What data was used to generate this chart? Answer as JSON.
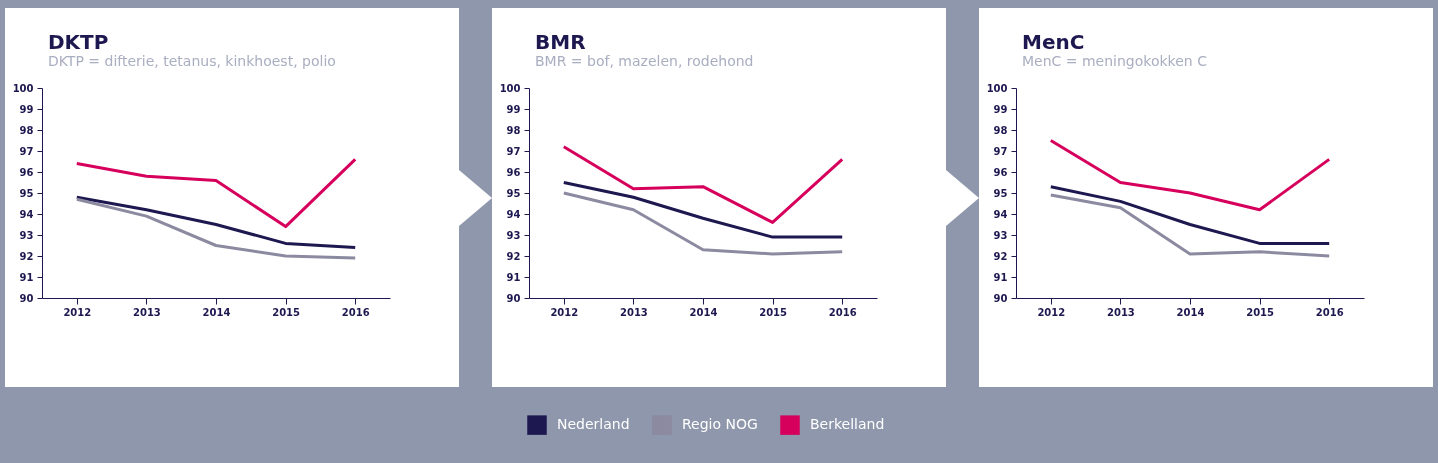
{
  "chart_data": [
    {
      "type": "line",
      "title": "DKTP",
      "subtitle": "DKTP = difterie, tetanus, kinkhoest, polio",
      "categories": [
        "2012",
        "2013",
        "2014",
        "2015",
        "2016"
      ],
      "ylim": [
        90,
        100
      ],
      "yticks": [
        90,
        91,
        92,
        93,
        94,
        95,
        96,
        97,
        98,
        99,
        100
      ],
      "line_style": "solid",
      "series": [
        {
          "color": "#1e1850",
          "values": [
            94.8,
            94.2,
            93.5,
            92.6,
            92.4
          ]
        },
        {
          "color": "#8b8aa0",
          "values": [
            94.7,
            93.9,
            92.5,
            92.0,
            91.9
          ]
        },
        {
          "color": "#d6005c",
          "values": [
            96.4,
            95.8,
            95.6,
            93.4,
            96.6
          ]
        }
      ]
    },
    {
      "type": "line",
      "title": "BMR",
      "subtitle": "BMR = bof, mazelen, rodehond",
      "categories": [
        "2012",
        "2013",
        "2014",
        "2015",
        "2016"
      ],
      "ylim": [
        90,
        100
      ],
      "yticks": [
        90,
        91,
        92,
        93,
        94,
        95,
        96,
        97,
        98,
        99,
        100
      ],
      "line_style": "solid",
      "legend": "bottom",
      "series": [
        {
          "name": "Nederland",
          "color": "#1e1850",
          "values": [
            95.5,
            94.8,
            93.8,
            92.9,
            92.9
          ]
        },
        {
          "name": "Regio NOG",
          "color": "#8b8aa0",
          "values": [
            95.0,
            94.2,
            92.3,
            92.1,
            92.2
          ]
        },
        {
          "name": "Berkelland",
          "color": "#d6005c",
          "values": [
            97.2,
            95.2,
            95.3,
            93.6,
            96.6
          ]
        }
      ]
    },
    {
      "type": "line",
      "title": "MenC",
      "subtitle": "MenC = meningokokken C",
      "categories": [
        "2012",
        "2013",
        "2014",
        "2015",
        "2016"
      ],
      "ylim": [
        90,
        100
      ],
      "yticks": [
        90,
        91,
        92,
        93,
        94,
        95,
        96,
        97,
        98,
        99,
        100
      ],
      "line_style": "solid",
      "series": [
        {
          "color": "#1e1850",
          "values": [
            95.3,
            94.6,
            93.5,
            92.6,
            92.6
          ]
        },
        {
          "color": "#8b8aa0",
          "values": [
            94.9,
            94.3,
            92.1,
            92.2,
            92.0
          ]
        },
        {
          "color": "#d6005c",
          "values": [
            97.5,
            95.5,
            95.0,
            94.2,
            96.6
          ]
        }
      ]
    }
  ]
}
